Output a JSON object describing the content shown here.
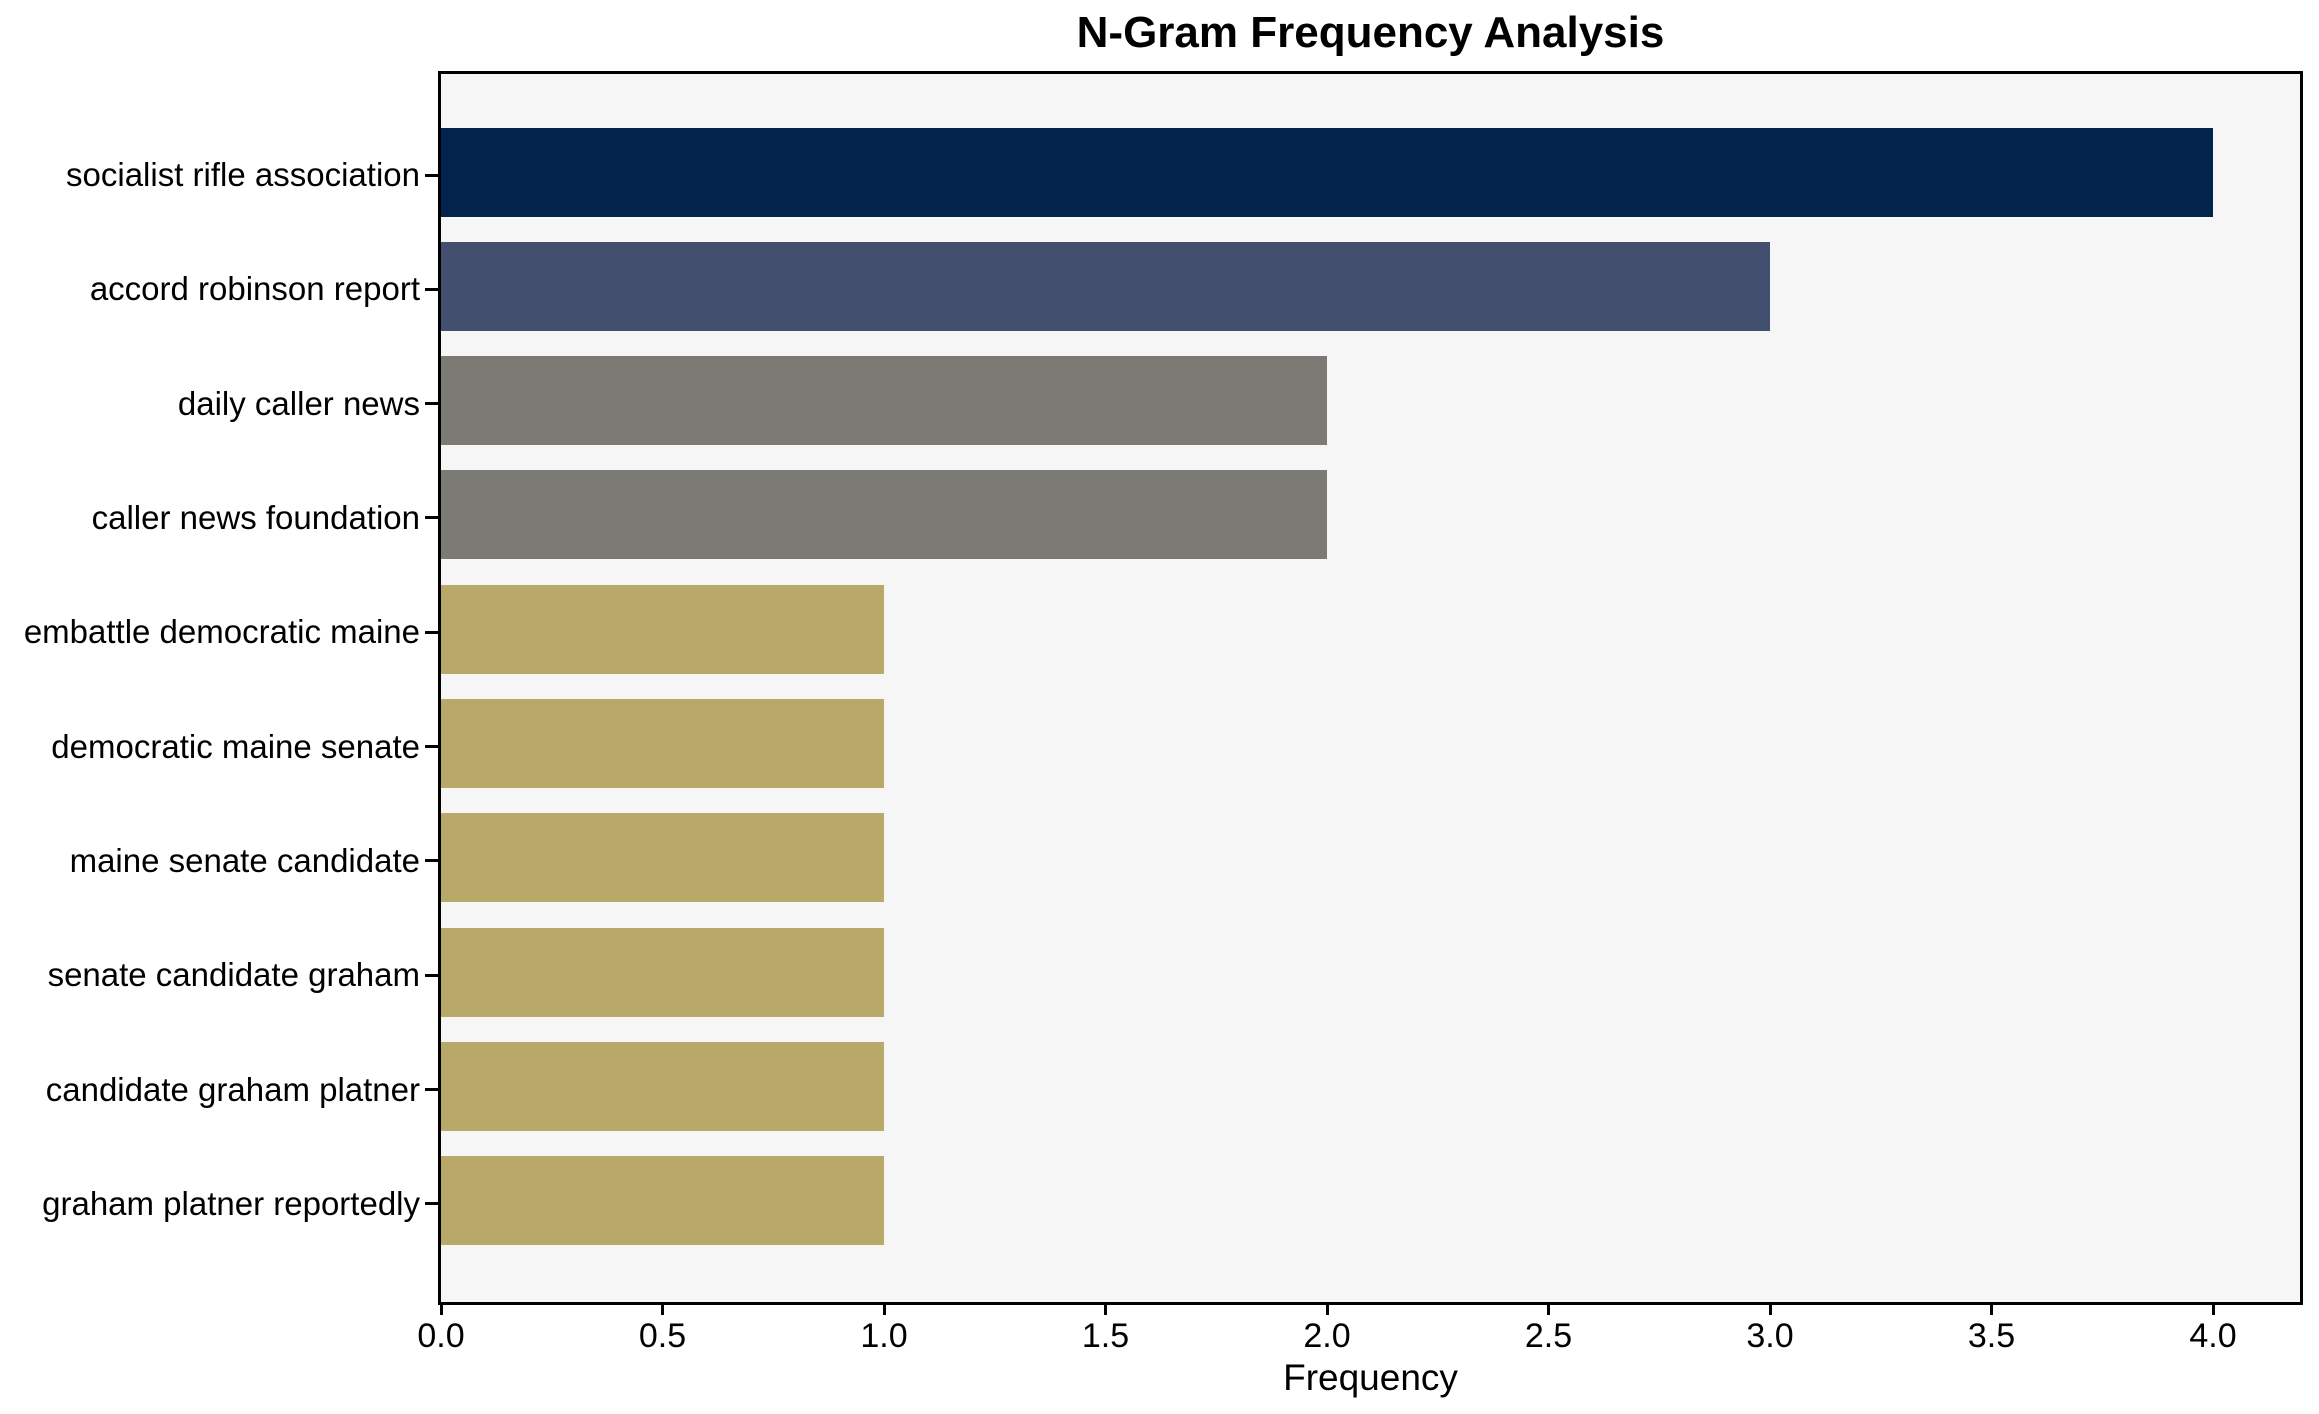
{
  "chart_data": {
    "type": "bar",
    "orientation": "horizontal",
    "title": "N-Gram Frequency Analysis",
    "xlabel": "Frequency",
    "ylabel": "",
    "categories": [
      "socialist rifle association",
      "accord robinson report",
      "daily caller news",
      "caller news foundation",
      "embattle democratic maine",
      "democratic maine senate",
      "maine senate candidate",
      "senate candidate graham",
      "candidate graham platner",
      "graham platner reportedly"
    ],
    "values": [
      4,
      3,
      2,
      2,
      1,
      1,
      1,
      1,
      1,
      1
    ],
    "bar_colors": [
      "#02234c",
      "#434f6e",
      "#7b7a75",
      "#7b7a75",
      "#b9a968",
      "#b9a968",
      "#b9a968",
      "#b9a968",
      "#b9a968",
      "#b9a968"
    ],
    "xlim": [
      0,
      4.2
    ],
    "xtick_values": [
      0.0,
      0.5,
      1.0,
      1.5,
      2.0,
      2.5,
      3.0,
      3.5,
      4.0
    ],
    "xtick_labels": [
      "0.0",
      "0.5",
      "1.0",
      "1.5",
      "2.0",
      "2.5",
      "3.0",
      "3.5",
      "4.0"
    ],
    "grid": false,
    "legend": null,
    "colors": {
      "plot_background": "#f7f6f7",
      "figure_background": "#ffffff",
      "spine": "#000000",
      "value_4": "#02234c",
      "value_3": "#434f6e",
      "value_2": "#7b7a75",
      "value_1": "#b9a968"
    }
  }
}
